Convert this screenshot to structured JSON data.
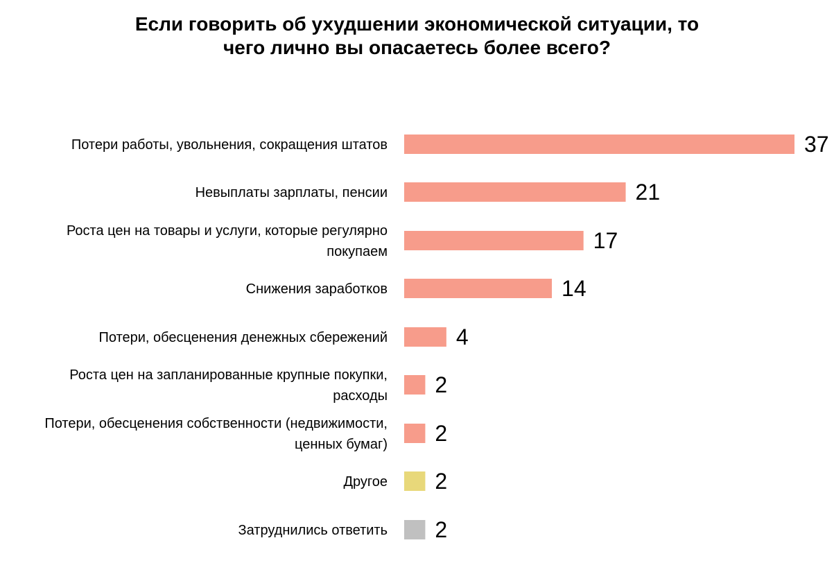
{
  "chart_data": {
    "type": "bar",
    "orientation": "horizontal",
    "title_lines": [
      "Если говорить об ухудшении экономической ситуации, то",
      "чего лично вы опасаетесь более всего?"
    ],
    "categories": [
      [
        "Потери работы, увольнения, сокращения штатов"
      ],
      [
        "Невыплаты зарплаты, пенсии"
      ],
      [
        "Роста цен на товары и услуги, которые регулярно",
        "покупаем"
      ],
      [
        "Снижения заработков"
      ],
      [
        "Потери, обесценения денежных сбережений"
      ],
      [
        "Роста цен на запланированные крупные покупки,",
        "расходы"
      ],
      [
        "Потери, обесценения собственности (недвижимости,",
        "ценных бумаг)"
      ],
      [
        "Другое"
      ],
      [
        "Затруднились ответить"
      ]
    ],
    "values": [
      37,
      21,
      17,
      14,
      4,
      2,
      2,
      2,
      2
    ],
    "colors": [
      "#f79c8b",
      "#f79c8b",
      "#f79c8b",
      "#f79c8b",
      "#f79c8b",
      "#f79c8b",
      "#f79c8b",
      "#e8d87a",
      "#c0c0c0"
    ],
    "xlim": [
      0,
      37
    ],
    "grid": false,
    "legend": "none"
  }
}
